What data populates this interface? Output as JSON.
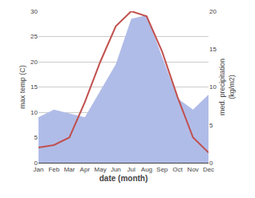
{
  "chart_data": {
    "type": "line",
    "categories": [
      "Jan",
      "Feb",
      "Mar",
      "Apr",
      "May",
      "Jun",
      "Jul",
      "Aug",
      "Sep",
      "Oct",
      "Nov",
      "Dec"
    ],
    "series": [
      {
        "type": "area",
        "axis": "y2",
        "color": "#b0bce8",
        "values": [
          6,
          7,
          6.5,
          6,
          9.5,
          13,
          19,
          19.5,
          14,
          8.5,
          7,
          9
        ]
      },
      {
        "type": "line",
        "color": "#c0504d",
        "values": [
          3,
          3.5,
          5,
          12,
          20,
          27,
          30,
          29,
          22,
          13,
          5,
          2
        ]
      }
    ],
    "xlabel": "date (month)",
    "ylabel": "max temp (C)",
    "y2label": "med. precipitation\n(kg/m2)",
    "ylim": [
      0,
      30
    ],
    "yticks": [
      0,
      5,
      10,
      15,
      20,
      25,
      30
    ],
    "y2lim": [
      0,
      20
    ],
    "y2ticks": [
      0,
      5,
      10,
      15,
      20
    ],
    "grid": true
  }
}
